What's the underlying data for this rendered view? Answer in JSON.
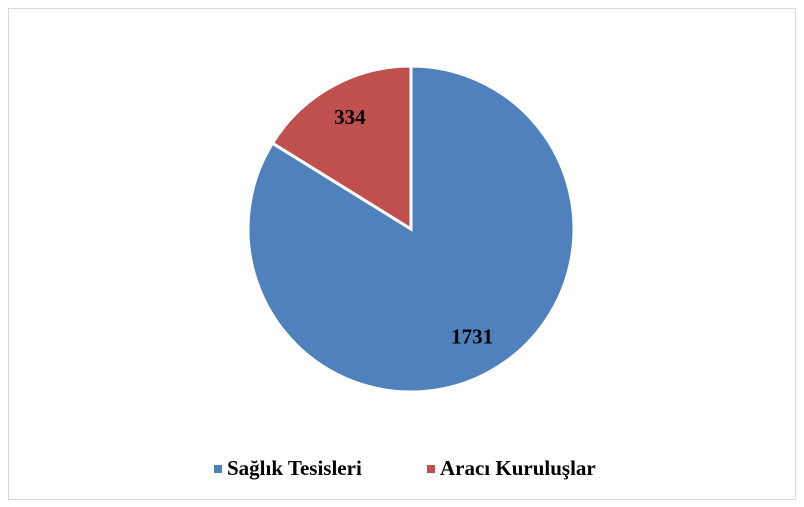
{
  "chart_data": {
    "type": "pie",
    "categories": [
      "Sağlık Tesisleri",
      "Aracı Kuruluşlar"
    ],
    "values": [
      1731,
      334
    ],
    "colors": [
      "#4f81bd",
      "#c0504d"
    ],
    "legend": "bottom"
  }
}
